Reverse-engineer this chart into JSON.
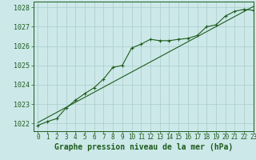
{
  "title": "Graphe pression niveau de la mer (hPa)",
  "bg_color": "#cce8e8",
  "grid_color": "#aacccc",
  "line_color": "#1e5c1e",
  "xlim": [
    -0.5,
    23
  ],
  "ylim": [
    1021.6,
    1028.3
  ],
  "yticks": [
    1022,
    1023,
    1024,
    1025,
    1026,
    1027,
    1028
  ],
  "xticks": [
    0,
    1,
    2,
    3,
    4,
    5,
    6,
    7,
    8,
    9,
    10,
    11,
    12,
    13,
    14,
    15,
    16,
    17,
    18,
    19,
    20,
    21,
    22,
    23
  ],
  "series1_x": [
    0,
    1,
    2,
    3,
    4,
    5,
    6,
    7,
    8,
    9,
    10,
    11,
    12,
    13,
    14,
    15,
    16,
    17,
    18,
    19,
    20,
    21,
    22,
    23
  ],
  "series1_y": [
    1021.9,
    1022.1,
    1022.25,
    1022.8,
    1023.2,
    1023.55,
    1023.85,
    1024.3,
    1024.9,
    1025.0,
    1025.9,
    1026.1,
    1026.35,
    1026.28,
    1026.28,
    1026.35,
    1026.4,
    1026.55,
    1027.0,
    1027.1,
    1027.55,
    1027.8,
    1027.9,
    1027.85
  ],
  "series2_x": [
    0,
    23
  ],
  "series2_y": [
    1022.05,
    1028.05
  ],
  "title_fontsize": 7,
  "tick_fontsize": 5.5
}
